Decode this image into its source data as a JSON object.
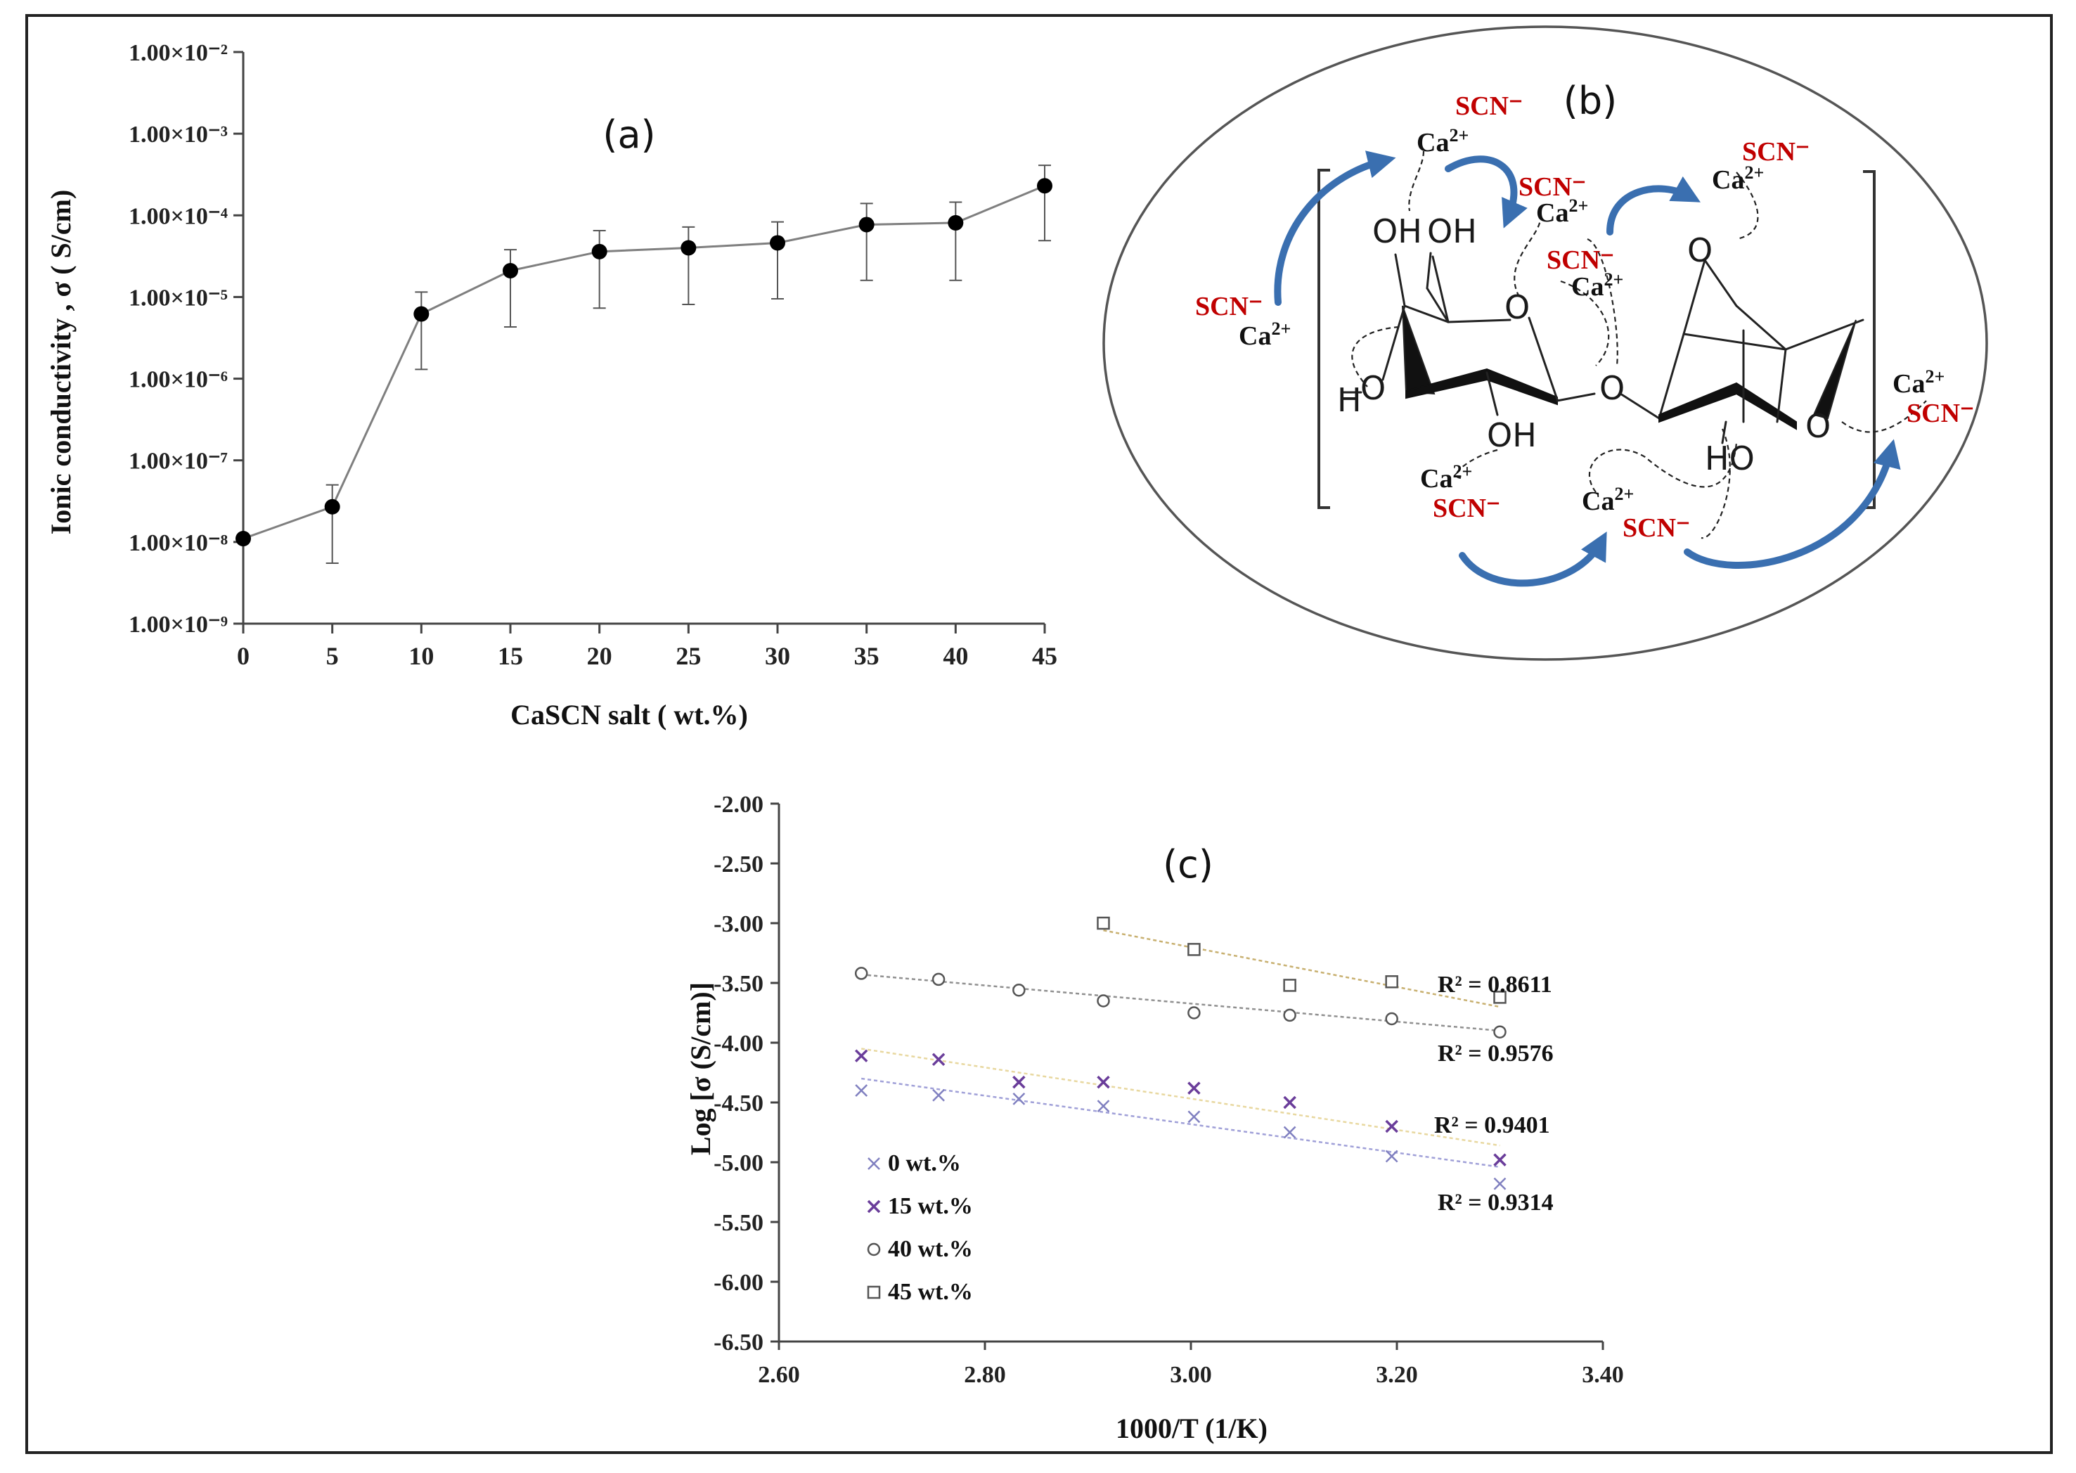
{
  "chart_data": [
    {
      "type": "line",
      "panel": "(a)",
      "xlabel": "CaSCN salt ( wt.%)",
      "ylabel": "Ionic conductivity , σ ( S/cm)",
      "x_ticks": [
        "0",
        "5",
        "10",
        "15",
        "20",
        "25",
        "30",
        "35",
        "40",
        "45"
      ],
      "y_ticks": [
        "1.00×10⁻⁹",
        "1.00×10⁻⁸",
        "1.00×10⁻⁷",
        "1.00×10⁻⁶",
        "1.00×10⁻⁵",
        "1.00×10⁻⁴",
        "1.00×10⁻³",
        "1.00×10⁻²"
      ],
      "yscale": "log",
      "xlim": [
        0,
        45
      ],
      "ylim": [
        1e-09,
        0.01
      ],
      "x": [
        0,
        5,
        10,
        15,
        20,
        25,
        30,
        35,
        40,
        45
      ],
      "y": [
        1.1e-08,
        2.7e-08,
        6.2e-06,
        2.1e-05,
        3.6e-05,
        4e-05,
        4.6e-05,
        7.7e-05,
        8.1e-05,
        0.00023
      ],
      "err_low": [
        null,
        5.5e-09,
        1.3e-06,
        4.3e-06,
        7.3e-06,
        8.1e-06,
        9.5e-06,
        1.6e-05,
        1.6e-05,
        4.9e-05
      ],
      "err_high": [
        null,
        5e-08,
        1.15e-05,
        3.8e-05,
        6.5e-05,
        7.2e-05,
        8.3e-05,
        0.00014,
        0.000145,
        0.00041
      ],
      "grid": false,
      "marker_color": "#000000",
      "line_color": "#7f7f7f"
    },
    {
      "type": "scatter",
      "panel": "(c)",
      "xlabel": "1000/T (1/K)",
      "ylabel": "Log [σ (S/cm)]",
      "x_ticks": [
        "2.60",
        "2.80",
        "3.00",
        "3.20",
        "3.40"
      ],
      "y_ticks": [
        "-2.00",
        "-2.50",
        "-3.00",
        "-3.50",
        "-4.00",
        "-4.50",
        "-5.00",
        "-5.50",
        "-6.00",
        "-6.50"
      ],
      "xlim": [
        2.6,
        3.4
      ],
      "ylim": [
        -6.5,
        -2.0
      ],
      "legend_position": "bottom-left",
      "grid": false,
      "series": [
        {
          "name": "0 wt.%",
          "marker": "x",
          "color": "#8080c0",
          "trend_color": "#a0a0d8",
          "x": [
            2.68,
            2.755,
            2.833,
            2.915,
            3.003,
            3.096,
            3.195,
            3.3
          ],
          "y": [
            -4.4,
            -4.44,
            -4.47,
            -4.53,
            -4.62,
            -4.75,
            -4.95,
            -5.18
          ],
          "trend": [
            -4.3,
            -5.04
          ],
          "r2": "R² = 0.9314"
        },
        {
          "name": "15 wt.%",
          "marker": "x-bold",
          "color": "#6a3d9a",
          "trend_color": "#e8d8a0",
          "x": [
            2.68,
            2.755,
            2.833,
            2.915,
            3.003,
            3.096,
            3.195,
            3.3
          ],
          "y": [
            -4.11,
            -4.14,
            -4.33,
            -4.33,
            -4.38,
            -4.5,
            -4.7,
            -4.98
          ],
          "trend": [
            -4.05,
            -4.86
          ],
          "r2": "R² = 0.9401"
        },
        {
          "name": "40 wt.%",
          "marker": "circle",
          "color": "#555555",
          "trend_color": "#909090",
          "x": [
            2.68,
            2.755,
            2.833,
            2.915,
            3.003,
            3.096,
            3.195,
            3.3
          ],
          "y": [
            -3.42,
            -3.47,
            -3.56,
            -3.65,
            -3.75,
            -3.77,
            -3.8,
            -3.91
          ],
          "trend": [
            -3.43,
            -3.9
          ],
          "r2": "R² = 0.9576"
        },
        {
          "name": "45 wt.%",
          "marker": "square",
          "color": "#555555",
          "trend_color": "#c8b070",
          "x": [
            2.915,
            3.003,
            3.096,
            3.195,
            3.3
          ],
          "y": [
            -3.0,
            -3.22,
            -3.52,
            -3.49,
            -3.62
          ],
          "trend": [
            -3.06,
            -3.7
          ],
          "r2": "R² = 0.8611"
        }
      ]
    }
  ],
  "panel_b": {
    "label": "(b)",
    "ca": "Ca",
    "ca_charge": "2+",
    "scn": "SCN⁻",
    "atoms": {
      "oh": "OH",
      "o": "O",
      "h": "H",
      "ho": "HO"
    }
  },
  "panel_c_label": "(c)",
  "colors": {
    "arrow": "#3a6fb0",
    "scn": "#c00000",
    "frame": "#222222"
  }
}
